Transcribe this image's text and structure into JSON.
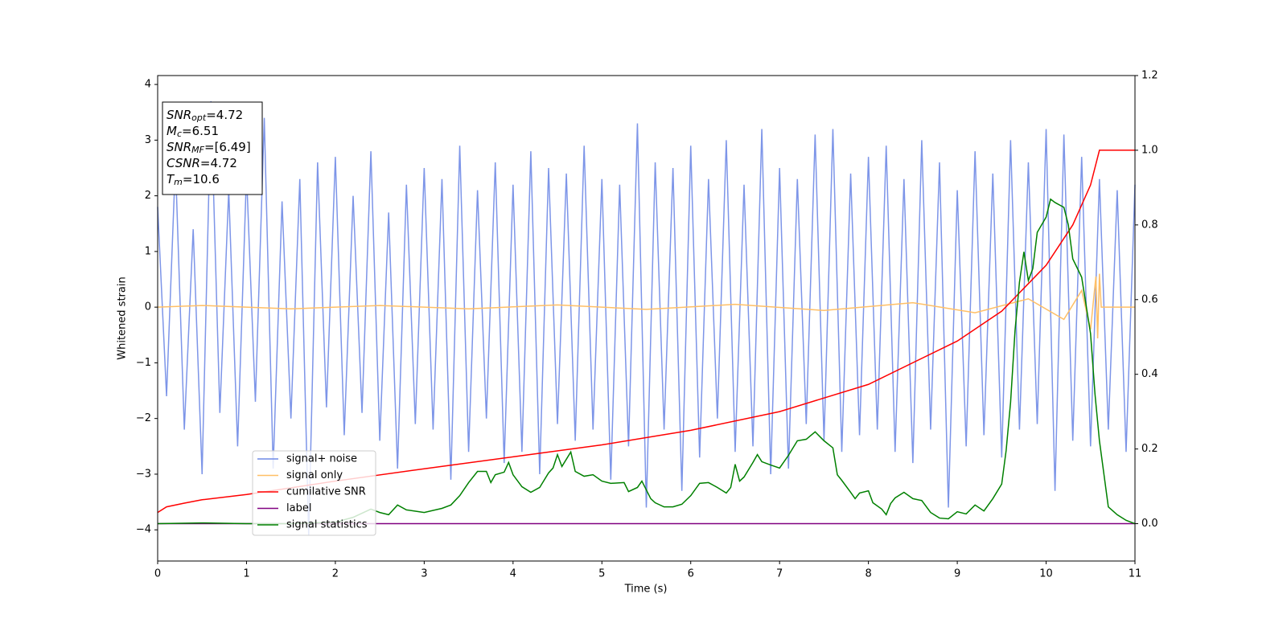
{
  "chart_data": {
    "type": "line",
    "xlabel": "Time (s)",
    "ylabel": "Whitened strain",
    "xlim": [
      0,
      11
    ],
    "ylim": [
      -4.56,
      4.16
    ],
    "y2lim": [
      -0.1,
      1.2
    ],
    "xticks": [
      0,
      1,
      2,
      3,
      4,
      5,
      6,
      7,
      8,
      9,
      10,
      11
    ],
    "yticks": [
      4,
      3,
      2,
      1,
      0,
      {
        "value": -1,
        "label": "−1"
      },
      {
        "value": -2,
        "label": "−2"
      },
      {
        "value": -3,
        "label": "−3"
      },
      {
        "value": -4,
        "label": "−4"
      }
    ],
    "y2ticks": [
      {
        "value": 0,
        "label": "0.0"
      },
      {
        "value": 0.2,
        "label": "0.2"
      },
      {
        "value": 0.4,
        "label": "0.4"
      },
      {
        "value": 0.6,
        "label": "0.6"
      },
      {
        "value": 0.8,
        "label": "0.8"
      },
      {
        "value": 1,
        "label": "1.0"
      },
      {
        "value": 1.2,
        "label": "1.2"
      }
    ],
    "legend": "lower left",
    "annotation": [
      [
        "SNR",
        "opt",
        "=4.72"
      ],
      [
        "M",
        "c",
        "=6.51"
      ],
      [
        "SNR",
        "MF",
        "=[6.49]"
      ],
      [
        "CSNR",
        "",
        "=4.72"
      ],
      [
        "T",
        "m",
        "=10.6"
      ]
    ],
    "series": [
      {
        "name": "signal+ noise",
        "color": "#6f8ae6",
        "axis": "y",
        "x": [
          0,
          0.1,
          0.2,
          0.3,
          0.4,
          0.5,
          0.6,
          0.7,
          0.8,
          0.9,
          1,
          1.1,
          1.2,
          1.3,
          1.4,
          1.5,
          1.6,
          1.7,
          1.8,
          1.9,
          2,
          2.1,
          2.2,
          2.3,
          2.4,
          2.5,
          2.6,
          2.7,
          2.8,
          2.9,
          3,
          3.1,
          3.2,
          3.3,
          3.4,
          3.5,
          3.6,
          3.7,
          3.8,
          3.9,
          4,
          4.1,
          4.2,
          4.3,
          4.4,
          4.5,
          4.6,
          4.7,
          4.8,
          4.9,
          5,
          5.1,
          5.2,
          5.3,
          5.4,
          5.5,
          5.6,
          5.7,
          5.8,
          5.9,
          6,
          6.1,
          6.2,
          6.3,
          6.4,
          6.5,
          6.6,
          6.7,
          6.8,
          6.9,
          7,
          7.1,
          7.2,
          7.3,
          7.4,
          7.5,
          7.6,
          7.7,
          7.8,
          7.9,
          8,
          8.1,
          8.2,
          8.3,
          8.4,
          8.5,
          8.6,
          8.7,
          8.8,
          8.9,
          9,
          9.1,
          9.2,
          9.3,
          9.4,
          9.5,
          9.6,
          9.7,
          9.8,
          9.9,
          10,
          10.1,
          10.2,
          10.3,
          10.4,
          10.5,
          10.6,
          10.7,
          10.8,
          10.9,
          11
        ],
        "values": [
          1.8,
          -1.6,
          2.6,
          -2.2,
          1.4,
          -3.0,
          3.7,
          -1.9,
          2.1,
          -2.5,
          2.4,
          -1.7,
          3.4,
          -2.9,
          1.9,
          -2.0,
          2.3,
          -4.1,
          2.6,
          -1.8,
          2.7,
          -2.3,
          2.0,
          -1.9,
          2.8,
          -2.4,
          1.7,
          -2.9,
          2.2,
          -2.1,
          2.5,
          -2.2,
          2.3,
          -3.1,
          2.9,
          -2.6,
          2.1,
          -2.0,
          2.6,
          -2.8,
          2.2,
          -2.6,
          2.8,
          -3.0,
          2.5,
          -2.1,
          2.4,
          -2.4,
          2.9,
          -2.2,
          2.3,
          -3.1,
          2.2,
          -2.5,
          3.3,
          -3.6,
          2.6,
          -2.2,
          2.5,
          -3.3,
          2.9,
          -2.7,
          2.3,
          -2.0,
          3.0,
          -2.6,
          2.2,
          -2.5,
          3.2,
          -3.0,
          2.5,
          -2.9,
          2.3,
          -2.1,
          3.1,
          -2.4,
          3.2,
          -2.6,
          2.4,
          -2.3,
          2.7,
          -2.2,
          2.9,
          -2.6,
          2.3,
          -2.8,
          3.0,
          -2.2,
          2.6,
          -3.6,
          2.1,
          -2.5,
          2.8,
          -2.3,
          2.4,
          -2.7,
          3.0,
          -2.2,
          2.6,
          -2.1,
          3.2,
          -3.3,
          3.1,
          -2.4,
          2.7,
          -2.5,
          2.3,
          -2.2,
          2.1,
          -2.6,
          2.2
        ]
      },
      {
        "name": "signal only",
        "color": "#ffbf66",
        "axis": "y",
        "x": [
          0,
          0.5,
          1.5,
          2.5,
          3.5,
          4.5,
          5.5,
          6.5,
          7.5,
          8.5,
          9.2,
          9.8,
          10.2,
          10.4,
          10.5,
          10.56,
          10.58,
          10.6,
          10.62,
          11
        ],
        "values": [
          0,
          0.03,
          -0.03,
          0.03,
          -0.03,
          0.04,
          -0.04,
          0.05,
          -0.06,
          0.08,
          -0.1,
          0.15,
          -0.22,
          0.3,
          -0.4,
          0.55,
          -0.56,
          0.6,
          0,
          0
        ]
      },
      {
        "name": "cumilative SNR",
        "color": "#ff0000",
        "axis": "y2",
        "x": [
          0,
          0.1,
          0.3,
          0.5,
          1,
          2,
          3,
          4,
          5,
          6,
          7,
          8,
          9,
          9.5,
          10,
          10.3,
          10.5,
          10.6,
          11
        ],
        "values": [
          0.03,
          0.045,
          0.055,
          0.064,
          0.078,
          0.114,
          0.147,
          0.179,
          0.211,
          0.25,
          0.3,
          0.373,
          0.489,
          0.569,
          0.692,
          0.8,
          0.907,
          1.0,
          1.0
        ]
      },
      {
        "name": "label",
        "color": "#800080",
        "axis": "y2",
        "x": [
          0,
          11
        ],
        "values": [
          0,
          0
        ]
      },
      {
        "name": "signal statistics",
        "color": "#008000",
        "axis": "y2",
        "x": [
          0,
          0.5,
          1,
          1.5,
          2,
          2.2,
          2.4,
          2.5,
          2.6,
          2.7,
          2.8,
          3.0,
          3.2,
          3.3,
          3.4,
          3.5,
          3.6,
          3.7,
          3.75,
          3.8,
          3.9,
          3.95,
          4.0,
          4.1,
          4.2,
          4.3,
          4.4,
          4.45,
          4.5,
          4.55,
          4.65,
          4.7,
          4.8,
          4.9,
          5.0,
          5.1,
          5.25,
          5.3,
          5.4,
          5.45,
          5.55,
          5.6,
          5.7,
          5.8,
          5.9,
          6.0,
          6.1,
          6.2,
          6.3,
          6.4,
          6.45,
          6.5,
          6.55,
          6.6,
          6.7,
          6.75,
          6.8,
          6.9,
          7.0,
          7.1,
          7.2,
          7.3,
          7.4,
          7.5,
          7.6,
          7.65,
          7.7,
          7.8,
          7.85,
          7.9,
          8.0,
          8.05,
          8.15,
          8.2,
          8.25,
          8.3,
          8.4,
          8.5,
          8.6,
          8.7,
          8.8,
          8.9,
          9.0,
          9.1,
          9.2,
          9.3,
          9.4,
          9.5,
          9.55,
          9.6,
          9.65,
          9.7,
          9.75,
          9.8,
          9.85,
          9.9,
          10.0,
          10.05,
          10.1,
          10.2,
          10.25,
          10.3,
          10.4,
          10.5,
          10.55,
          10.6,
          10.7,
          10.8,
          10.9,
          11.0
        ],
        "values": [
          0,
          0.002,
          0,
          0,
          0.004,
          0.017,
          0.039,
          0.03,
          0.024,
          0.05,
          0.037,
          0.03,
          0.041,
          0.05,
          0.075,
          0.11,
          0.14,
          0.14,
          0.11,
          0.131,
          0.138,
          0.164,
          0.131,
          0.099,
          0.084,
          0.097,
          0.136,
          0.149,
          0.185,
          0.153,
          0.192,
          0.14,
          0.127,
          0.131,
          0.114,
          0.108,
          0.11,
          0.086,
          0.097,
          0.114,
          0.067,
          0.056,
          0.045,
          0.045,
          0.052,
          0.075,
          0.108,
          0.11,
          0.097,
          0.082,
          0.097,
          0.159,
          0.114,
          0.125,
          0.164,
          0.185,
          0.166,
          0.157,
          0.149,
          0.183,
          0.222,
          0.226,
          0.246,
          0.222,
          0.203,
          0.131,
          0.116,
          0.084,
          0.067,
          0.082,
          0.088,
          0.056,
          0.039,
          0.024,
          0.054,
          0.069,
          0.084,
          0.067,
          0.062,
          0.03,
          0.015,
          0.013,
          0.032,
          0.026,
          0.05,
          0.034,
          0.067,
          0.106,
          0.196,
          0.325,
          0.517,
          0.647,
          0.728,
          0.651,
          0.683,
          0.78,
          0.821,
          0.869,
          0.86,
          0.847,
          0.8,
          0.709,
          0.66,
          0.509,
          0.347,
          0.222,
          0.045,
          0.024,
          0.009,
          0
        ]
      }
    ]
  }
}
